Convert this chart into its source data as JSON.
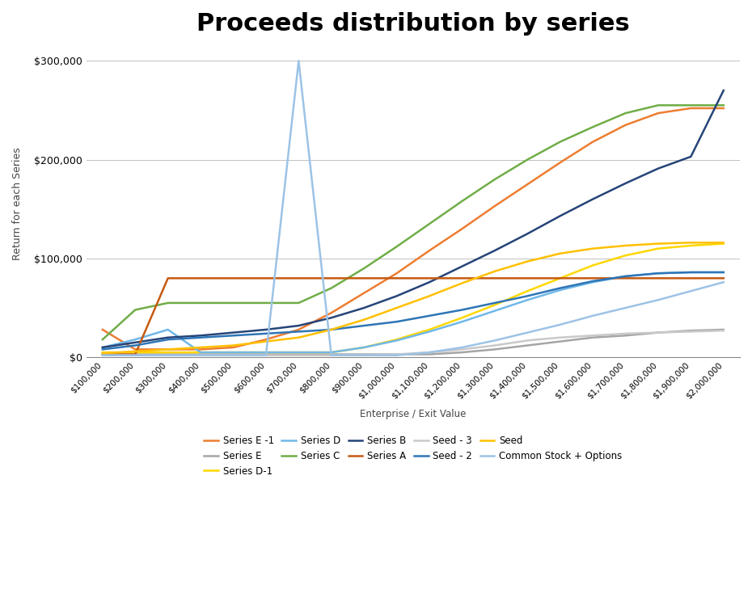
{
  "title": "Proceeds distribution by series",
  "xlabel": "Enterprise / Exit Value",
  "ylabel": "Return for each Series",
  "background": "#ffffff",
  "x_values": [
    100000,
    200000,
    300000,
    400000,
    500000,
    600000,
    700000,
    800000,
    900000,
    1000000,
    1100000,
    1200000,
    1300000,
    1400000,
    1500000,
    1600000,
    1700000,
    1800000,
    1900000,
    2000000
  ],
  "series": [
    {
      "name": "Series E -1",
      "color": "#ED7D31",
      "y": [
        28000,
        8000,
        8000,
        8000,
        10000,
        18000,
        28000,
        45000,
        65000,
        85000,
        108000,
        130000,
        153000,
        175000,
        197000,
        218000,
        235000,
        247000,
        252000,
        252000
      ]
    },
    {
      "name": "Series E",
      "color": "#A5A5A5",
      "y": [
        3000,
        3000,
        3000,
        3000,
        3000,
        3000,
        3000,
        3000,
        3000,
        3000,
        3000,
        5000,
        8000,
        12000,
        16000,
        20000,
        22000,
        25000,
        27000,
        28000
      ]
    },
    {
      "name": "Series D-1",
      "color": "#FFD700",
      "y": [
        5000,
        5000,
        5000,
        5000,
        5000,
        5000,
        5000,
        5000,
        10000,
        18000,
        28000,
        40000,
        53000,
        67000,
        80000,
        93000,
        103000,
        110000,
        113000,
        115000
      ]
    },
    {
      "name": "Series D",
      "color": "#70B8E8",
      "y": [
        10000,
        18000,
        28000,
        5000,
        5000,
        5000,
        5000,
        5000,
        10000,
        17000,
        26000,
        36000,
        47000,
        58000,
        68000,
        76000,
        82000,
        85000,
        86000,
        86000
      ]
    },
    {
      "name": "Series C",
      "color": "#70AD47",
      "y": [
        18000,
        48000,
        55000,
        55000,
        55000,
        55000,
        55000,
        70000,
        90000,
        112000,
        135000,
        158000,
        180000,
        200000,
        218000,
        233000,
        247000,
        255000,
        255000,
        255000
      ]
    },
    {
      "name": "Series B",
      "color": "#264478",
      "y": [
        10000,
        15000,
        20000,
        22000,
        25000,
        28000,
        32000,
        40000,
        50000,
        62000,
        76000,
        92000,
        108000,
        125000,
        143000,
        160000,
        176000,
        191000,
        203000,
        270000
      ]
    },
    {
      "name": "Series A",
      "color": "#C55A11",
      "y": [
        3000,
        3000,
        80000,
        80000,
        80000,
        80000,
        80000,
        80000,
        80000,
        80000,
        80000,
        80000,
        80000,
        80000,
        80000,
        80000,
        80000,
        80000,
        80000,
        80000
      ]
    },
    {
      "name": "Seed - 3",
      "color": "#C9C9C9",
      "y": [
        2000,
        2000,
        2000,
        2000,
        2000,
        2000,
        2000,
        2000,
        2000,
        3000,
        5000,
        8000,
        12000,
        17000,
        20000,
        22000,
        24000,
        25000,
        26000,
        27000
      ]
    },
    {
      "name": "Seed - 2",
      "color": "#2E75B6",
      "y": [
        8000,
        12000,
        18000,
        20000,
        22000,
        24000,
        26000,
        28000,
        32000,
        36000,
        42000,
        48000,
        55000,
        62000,
        70000,
        77000,
        82000,
        85000,
        86000,
        86000
      ]
    },
    {
      "name": "Seed",
      "color": "#FFC000",
      "y": [
        4000,
        6000,
        8000,
        10000,
        12000,
        16000,
        20000,
        28000,
        38000,
        50000,
        62000,
        75000,
        87000,
        97000,
        105000,
        110000,
        113000,
        115000,
        116000,
        116000
      ]
    },
    {
      "name": "Common Stock + Options",
      "color": "#9DC3E6",
      "y": [
        2000,
        2000,
        2000,
        2000,
        2000,
        2000,
        300000,
        2000,
        2000,
        2000,
        5000,
        10000,
        17000,
        25000,
        33000,
        42000,
        50000,
        58000,
        67000,
        76000
      ]
    }
  ],
  "ylim": [
    0,
    310000
  ],
  "yticks": [
    0,
    100000,
    200000,
    300000
  ],
  "ytick_labels": [
    "$0",
    "$100,000",
    "$200,000",
    "$300,000"
  ],
  "xtick_labels": [
    "$100,000",
    "$200,000",
    "$300,000",
    "$400,000",
    "$500,000",
    "$600,000",
    "$700,000",
    "$800,000",
    "$900,000",
    "$1,000,000",
    "$1,100,000",
    "$1,200,000",
    "$1,300,000",
    "$1,400,000",
    "$1,500,000",
    "$1,600,000",
    "$1,700,000",
    "$1,800,000",
    "$1,900,000",
    "$2,000,000"
  ]
}
